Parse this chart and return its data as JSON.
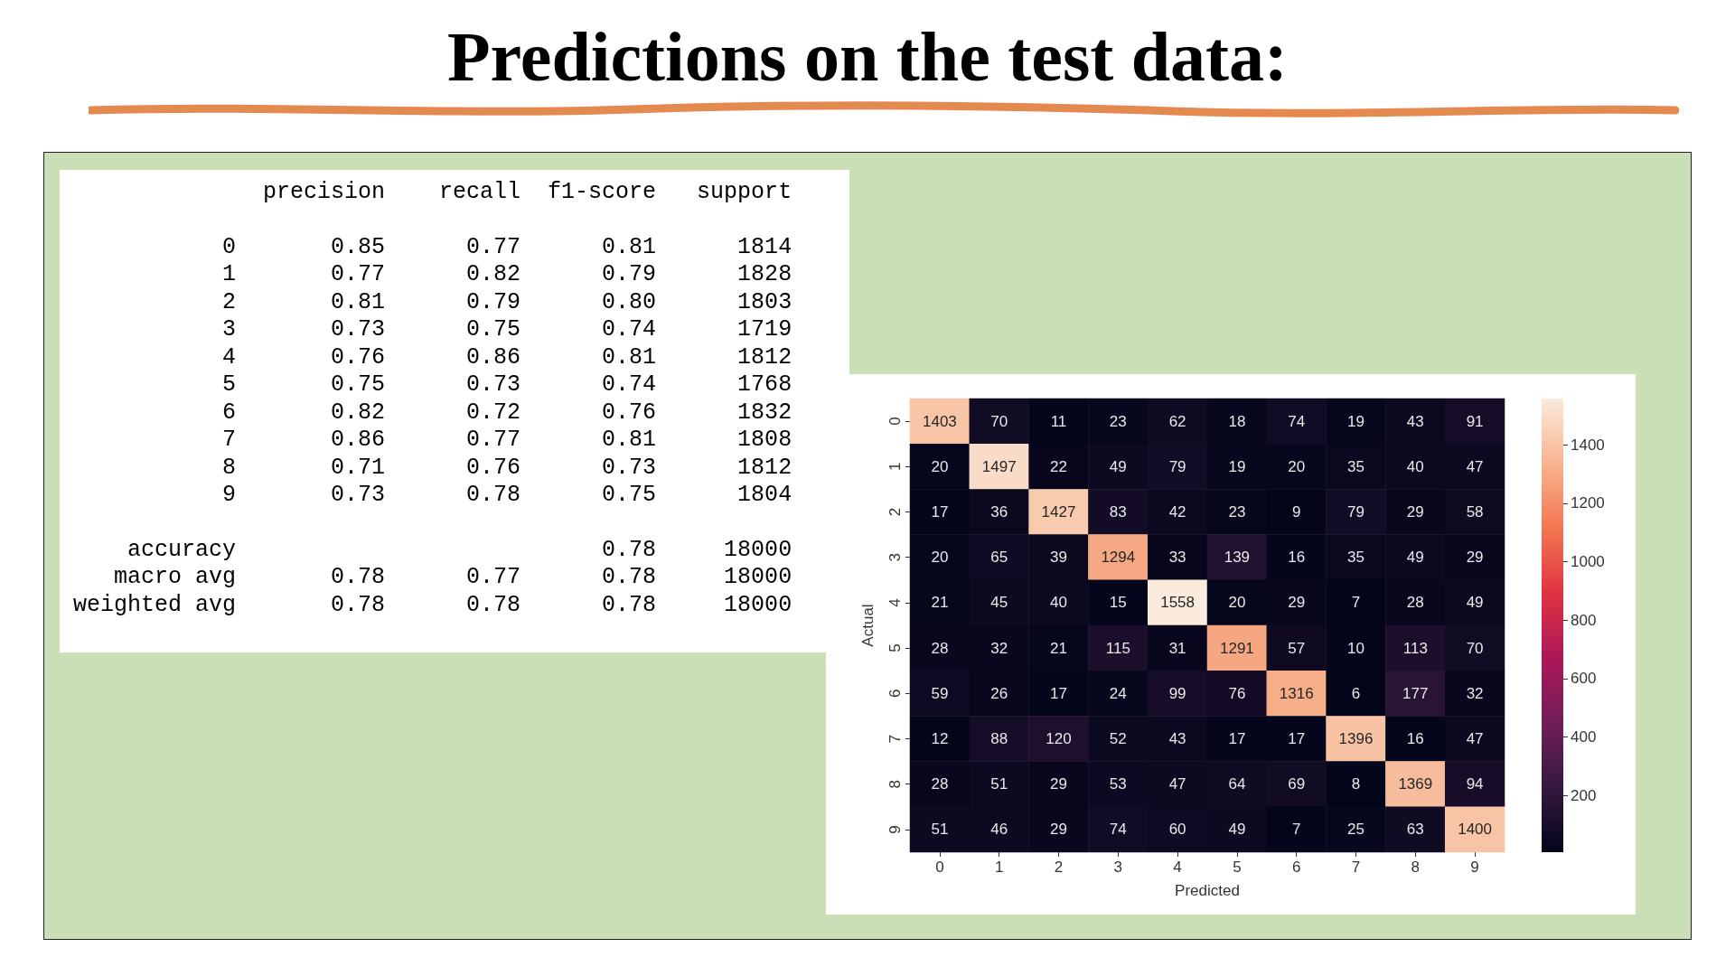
{
  "chart_data": [
    {
      "type": "other",
      "title": "Predictions on the test data:",
      "annotations": [
        "              precision    recall  f1-score   support",
        "           0       0.85      0.77      0.81      1814",
        "           1       0.77      0.82      0.79      1828",
        "           2       0.81      0.79      0.80      1803",
        "           3       0.73      0.75      0.74      1719",
        "           4       0.76      0.86      0.81      1812",
        "           5       0.75      0.73      0.74      1768",
        "           6       0.82      0.72      0.76      1832",
        "           7       0.86      0.77      0.81      1808",
        "           8       0.71      0.76      0.73      1812",
        "           9       0.73      0.78      0.75      1804",
        "    accuracy                           0.78     18000",
        "   macro avg       0.78      0.77      0.78     18000",
        "weighted avg       0.78      0.78      0.78     18000"
      ]
    },
    {
      "type": "heatmap",
      "xlabel": "Predicted",
      "ylabel": "Actual",
      "categories": [
        "0",
        "1",
        "2",
        "3",
        "4",
        "5",
        "6",
        "7",
        "8",
        "9"
      ],
      "y_categories": [
        "0",
        "1",
        "2",
        "3",
        "4",
        "5",
        "6",
        "7",
        "8",
        "9"
      ],
      "cells": [
        [
          1403,
          70,
          11,
          23,
          62,
          18,
          74,
          19,
          43,
          91
        ],
        [
          20,
          1497,
          22,
          49,
          79,
          19,
          20,
          35,
          40,
          47
        ],
        [
          17,
          36,
          1427,
          83,
          42,
          23,
          9,
          79,
          29,
          58
        ],
        [
          20,
          65,
          39,
          1294,
          33,
          139,
          16,
          35,
          49,
          29
        ],
        [
          21,
          45,
          40,
          15,
          1558,
          20,
          29,
          7,
          28,
          49
        ],
        [
          28,
          32,
          21,
          115,
          31,
          1291,
          57,
          10,
          113,
          70
        ],
        [
          59,
          26,
          17,
          24,
          99,
          76,
          1316,
          6,
          177,
          32
        ],
        [
          12,
          88,
          120,
          52,
          43,
          17,
          17,
          1396,
          16,
          47
        ],
        [
          28,
          51,
          29,
          53,
          47,
          64,
          69,
          8,
          1369,
          94
        ],
        [
          51,
          46,
          29,
          74,
          60,
          49,
          7,
          25,
          63,
          1400
        ]
      ],
      "data_labels": true,
      "clim": [
        6,
        1558
      ],
      "cticks": [
        200,
        400,
        600,
        800,
        1000,
        1200,
        1400
      ]
    }
  ]
}
